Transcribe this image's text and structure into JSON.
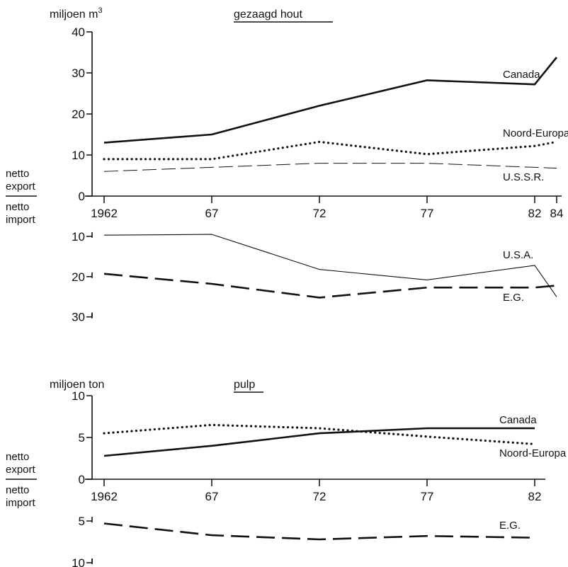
{
  "chart_data": [
    {
      "type": "line",
      "title": "gezaagd hout",
      "unit_label": "miljoen m3",
      "unit_base": "miljoen m",
      "unit_sup": "3",
      "side_label_top": [
        "netto",
        "export"
      ],
      "side_label_bottom": [
        "netto",
        "import"
      ],
      "x": [
        1962,
        1967,
        1972,
        1977,
        1982,
        1984
      ],
      "x_tick_labels": [
        "1962",
        "67",
        "72",
        "77",
        "82",
        "84"
      ],
      "y_export_ticks": [
        "40",
        "30",
        "20",
        "10",
        "0"
      ],
      "y_import_ticks": [
        "10",
        "20",
        "30"
      ],
      "ylim_export": [
        0,
        40
      ],
      "ylim_import": [
        0,
        30
      ],
      "series": [
        {
          "name": "Canada",
          "side": "export",
          "style": "solid-thick",
          "values": [
            13,
            15,
            22,
            28.2,
            27.2,
            33.8
          ]
        },
        {
          "name": "Noord-Europa",
          "side": "export",
          "style": "dotted",
          "values": [
            9,
            9,
            13.2,
            10.2,
            12.2,
            13.2
          ]
        },
        {
          "name": "U.S.S.R.",
          "side": "export",
          "style": "dashed-thin",
          "values": [
            6,
            7,
            8,
            8,
            7,
            6.8
          ]
        },
        {
          "name": "U.S.A.",
          "side": "import",
          "style": "solid-thin",
          "values": [
            9.7,
            9.5,
            18.2,
            20.8,
            17.2,
            25
          ]
        },
        {
          "name": "E.G.",
          "side": "import",
          "style": "dashed-thick",
          "values": [
            19.3,
            21.8,
            25.2,
            22.7,
            22.7,
            22.2
          ]
        }
      ]
    },
    {
      "type": "line",
      "title": "pulp",
      "unit_label": "miljoen ton",
      "side_label_top": [
        "netto",
        "export"
      ],
      "side_label_bottom": [
        "netto",
        "import"
      ],
      "x": [
        1962,
        1967,
        1972,
        1977,
        1982
      ],
      "x_tick_labels": [
        "1962",
        "67",
        "72",
        "77",
        "82"
      ],
      "y_export_ticks": [
        "10",
        "5",
        "0"
      ],
      "y_import_ticks": [
        "5",
        "10"
      ],
      "ylim_export": [
        0,
        10
      ],
      "ylim_import": [
        0,
        10
      ],
      "series": [
        {
          "name": "Canada",
          "side": "export",
          "style": "solid-thick",
          "values": [
            2.8,
            4,
            5.5,
            6.1,
            6.1
          ]
        },
        {
          "name": "Noord-Europa",
          "side": "export",
          "style": "dotted",
          "values": [
            5.5,
            6.5,
            6.1,
            5.1,
            4.2
          ]
        },
        {
          "name": "E.G.",
          "side": "import",
          "style": "dashed-thick",
          "values": [
            5.3,
            6.7,
            7.2,
            6.8,
            7
          ]
        }
      ]
    }
  ]
}
